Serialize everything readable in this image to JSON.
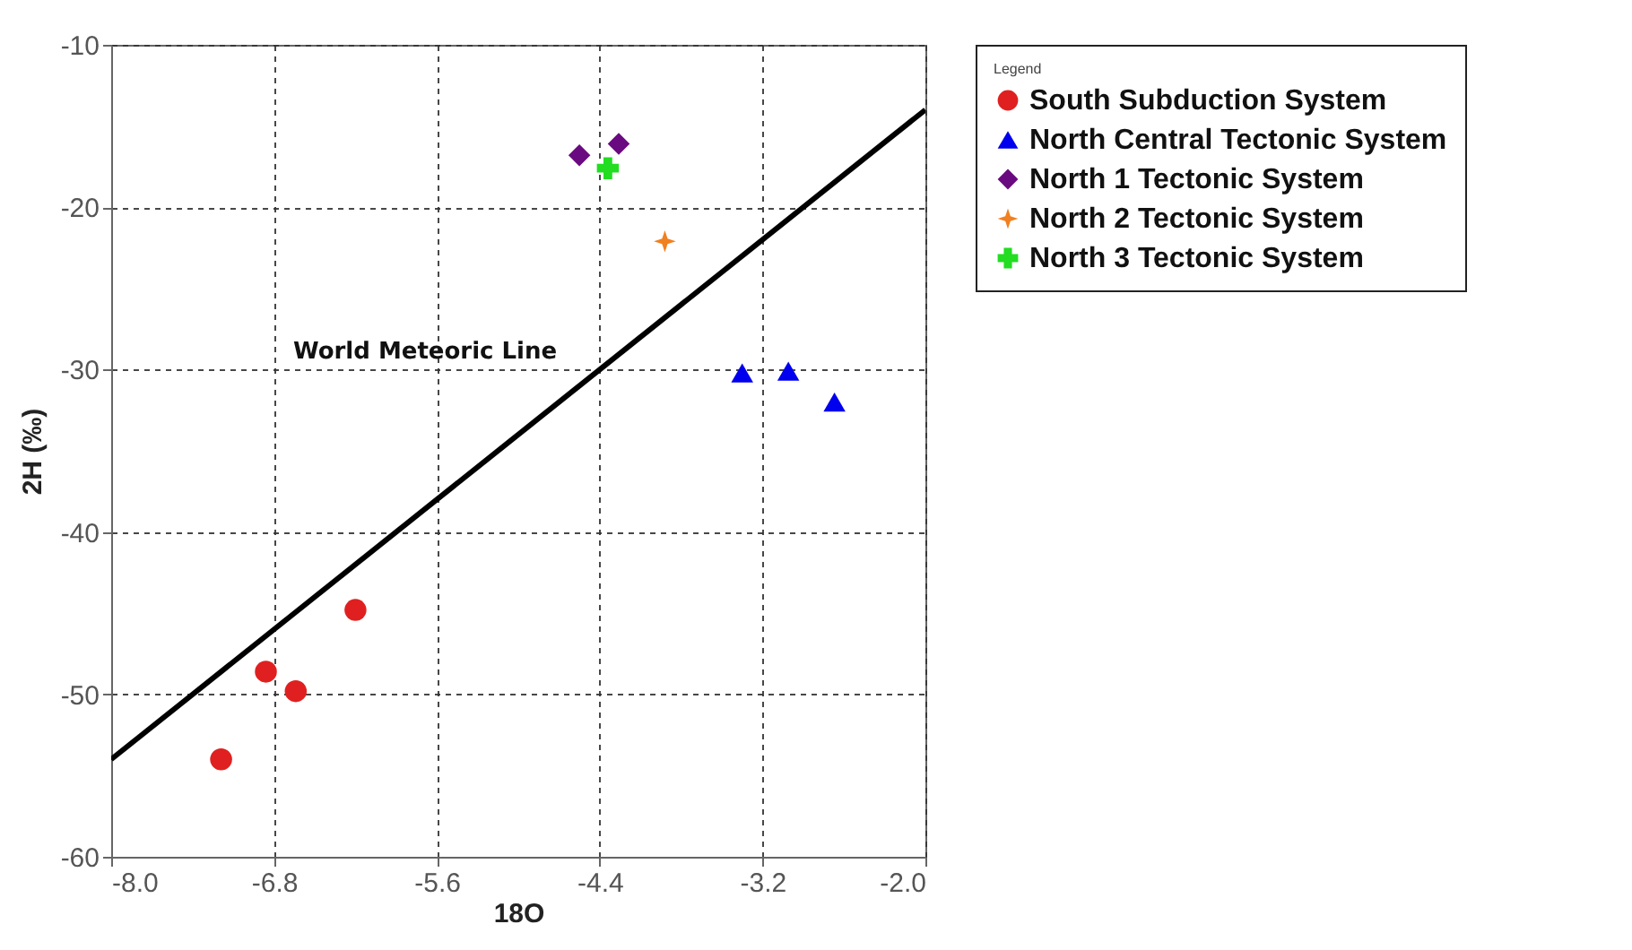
{
  "chart_data": {
    "type": "scatter",
    "xlabel": "18O",
    "ylabel": "2H (‰)",
    "legend_title": "Legend",
    "xlim": [
      -8.0,
      -2.0
    ],
    "ylim": [
      -60,
      -10
    ],
    "xticks": [
      {
        "value": -8,
        "label": "-8.0"
      },
      {
        "value": -6.8,
        "label": "-6.8"
      },
      {
        "value": -5.6,
        "label": "-5.6"
      },
      {
        "value": -4.4,
        "label": "-4.4"
      },
      {
        "value": -3.2,
        "label": "-3.2"
      },
      {
        "value": -2,
        "label": "-2.0"
      }
    ],
    "yticks": [
      -60,
      -50,
      -40,
      -30,
      -20,
      -10
    ],
    "grid": true,
    "legend": "top right",
    "annotations": [
      "World Meteoric Line"
    ],
    "series": [
      {
        "name": "South Subduction System",
        "color": "#e02020",
        "marker": "circle",
        "x": [
          -7.19,
          -6.86,
          -6.64,
          -6.2
        ],
        "values": [
          -54.0,
          -48.6,
          -49.8,
          -44.8
        ]
      },
      {
        "name": "North Central Tectonic System",
        "color": "#0000ee",
        "marker": "triangle",
        "x": [
          -3.35,
          -3.01,
          -2.67
        ],
        "values": [
          -30.2,
          -30.1,
          -32.0
        ]
      },
      {
        "name": "North 1 Tectonic System",
        "color": "#6a0a80",
        "marker": "diamond",
        "x": [
          -4.55,
          -4.26
        ],
        "values": [
          -16.8,
          -16.1
        ]
      },
      {
        "name": "North 2 Tectonic System",
        "color": "#f08020",
        "marker": "star",
        "x": [
          -3.92
        ],
        "values": [
          -22.1
        ]
      },
      {
        "name": "North 3 Tectonic System",
        "color": "#22dd22",
        "marker": "cross",
        "x": [
          -4.34
        ],
        "values": [
          -17.6
        ]
      },
      {
        "type": "line",
        "color": "#000000",
        "x": [
          -8.0,
          -2.0
        ],
        "values": [
          -54.0,
          -14.0
        ]
      }
    ]
  }
}
